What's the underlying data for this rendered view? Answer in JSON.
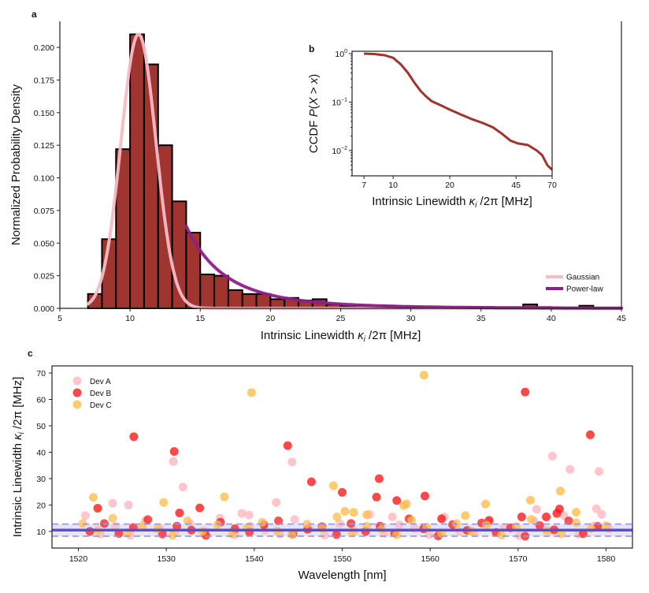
{
  "chart_data": [
    {
      "id": "a",
      "type": "bar",
      "panel_label": "a",
      "xlabel": "Intrinsic Linewidth κ_i /2π [MHz]",
      "xlabel_parts": [
        "Intrinsic Linewidth ",
        "κ",
        "i",
        " /2π [MHz]"
      ],
      "ylabel": "Normalized Probability Density",
      "xlim": [
        5,
        45
      ],
      "ylim": [
        0,
        0.22
      ],
      "xticks": [
        5,
        10,
        15,
        20,
        25,
        30,
        35,
        40,
        45
      ],
      "xtick_labels": [
        "5",
        "10",
        "15",
        "20",
        "25",
        "30",
        "35",
        "40",
        "45"
      ],
      "yticks": [
        0,
        0.025,
        0.05,
        0.075,
        0.1,
        0.125,
        0.15,
        0.175,
        0.2
      ],
      "ytick_labels": [
        "0.000",
        "0.025",
        "0.050",
        "0.075",
        "0.100",
        "0.125",
        "0.150",
        "0.175",
        "0.200"
      ],
      "bin_width": 1,
      "bin_starts": [
        7,
        8,
        9,
        10,
        11,
        12,
        13,
        14,
        15,
        16,
        17,
        18,
        19,
        20,
        21,
        22,
        23,
        24,
        25,
        26,
        27,
        28,
        29,
        30,
        31,
        32,
        33,
        34,
        35,
        36,
        37,
        38,
        39,
        40,
        41,
        42
      ],
      "values": [
        0.011,
        0.053,
        0.122,
        0.21,
        0.187,
        0.125,
        0.082,
        0.058,
        0.026,
        0.025,
        0.014,
        0.011,
        0.011,
        0.007,
        0.008,
        0.006,
        0.007,
        0.003,
        0.002,
        0.002,
        0.001,
        0.002,
        0.001,
        0.001,
        0.0005,
        0.0005,
        0.0005,
        0.001,
        0.001,
        0.0005,
        0.0005,
        0.003,
        0.001,
        0.0005,
        0.0005,
        0.002
      ],
      "bar_color": "#a0342e",
      "fits": [
        {
          "name": "Gaussian",
          "kind": "gaussian",
          "mu": 10.6,
          "sigma": 1.25,
          "peak": 0.21,
          "range": [
            7,
            45
          ],
          "color": "#f7bcc6"
        },
        {
          "name": "Power-law",
          "kind": "powerlaw",
          "x0": 14,
          "y0": 0.063,
          "alpha": 5.1,
          "range": [
            14,
            45
          ],
          "color": "#8e1f8a"
        }
      ],
      "legend": {
        "position": "lower-right",
        "entries": [
          "Gaussian",
          "Power-law"
        ]
      }
    },
    {
      "id": "b",
      "type": "line",
      "panel_label": "b",
      "scale": "log-log",
      "xlabel_parts": [
        "Intrinsic Linewidth ",
        "κ",
        "i",
        " /2π [MHz]"
      ],
      "ylabel_parts": [
        "CCDF ",
        "P",
        "(",
        "X",
        " > ",
        "x",
        ")"
      ],
      "xlim": [
        6.05,
        70
      ],
      "ylim": [
        0.003,
        1.12
      ],
      "xticks": [
        7,
        10,
        20,
        45,
        70
      ],
      "xtick_labels": [
        "7",
        "10",
        "20",
        "45",
        "70"
      ],
      "yticks": [
        1,
        0.1,
        0.01
      ],
      "ytick_labels": [
        {
          "base": "10",
          "exp": "0"
        },
        {
          "base": "10",
          "exp": "−1"
        },
        {
          "base": "10",
          "exp": "−2"
        }
      ],
      "x": [
        7,
        8,
        9,
        10,
        11,
        12,
        13,
        14,
        15,
        16,
        18,
        20,
        23,
        26,
        30,
        34,
        38,
        42,
        46,
        52,
        58,
        62,
        66,
        70
      ],
      "y": [
        1,
        0.98,
        0.93,
        0.82,
        0.6,
        0.4,
        0.25,
        0.17,
        0.13,
        0.105,
        0.085,
        0.07,
        0.055,
        0.045,
        0.037,
        0.03,
        0.022,
        0.016,
        0.014,
        0.013,
        0.01,
        0.008,
        0.005,
        0.004
      ],
      "color": "#a0342e"
    },
    {
      "id": "c",
      "type": "scatter",
      "panel_label": "c",
      "xlabel": "Wavelength [nm]",
      "ylabel_parts": [
        "Intrinsic Linewidth ",
        "κ",
        "i",
        " /2π [MHz]"
      ],
      "xlim": [
        1517,
        1583
      ],
      "ylim": [
        3.7,
        72.7
      ],
      "xticks": [
        1520,
        1530,
        1540,
        1550,
        1560,
        1570,
        1580
      ],
      "xtick_labels": [
        "1520",
        "1530",
        "1540",
        "1550",
        "1560",
        "1570",
        "1580"
      ],
      "yticks": [
        10,
        20,
        30,
        40,
        50,
        60,
        70
      ],
      "ytick_labels": [
        "10",
        "20",
        "30",
        "40",
        "50",
        "60",
        "70"
      ],
      "mean": 10.5,
      "band": [
        8.2,
        12.8
      ],
      "mean_color": "#5a4fd0",
      "legend": {
        "position": "top-left",
        "entries": [
          "Dev A",
          "Dev B",
          "Dev C"
        ]
      },
      "series": [
        {
          "name": "Dev A",
          "color": "#ffb6c1",
          "cluster_x_start": 1520.8,
          "cluster_x_step": 1.7,
          "cluster_y": [
            16,
            9,
            12,
            8.5,
            14,
            11,
            9.5,
            13,
            10,
            15,
            8.8,
            12,
            10.5,
            9,
            14.5,
            11,
            8.6,
            13,
            10,
            16.5,
            9.2,
            12.5,
            11,
            8.8,
            15.5,
            10,
            9.5,
            13.5,
            11.5,
            8.4,
            14,
            10.2,
            16,
            9,
            12,
            11
          ],
          "outliers": [
            [
              1530.8,
              36.5
            ],
            [
              1531.9,
              26.8
            ],
            [
              1544.3,
              36.3
            ],
            [
              1542.5,
              21
            ],
            [
              1523.9,
              20.7
            ],
            [
              1525.7,
              20
            ],
            [
              1538.6,
              16.8
            ],
            [
              1539.4,
              16.2
            ],
            [
              1573.9,
              38.5
            ],
            [
              1575.9,
              33.5
            ],
            [
              1579.2,
              32.7
            ],
            [
              1572.1,
              18.4
            ],
            [
              1578.9,
              18.6
            ],
            [
              1579.5,
              16.5
            ],
            [
              1555.7,
              15.5
            ]
          ]
        },
        {
          "name": "Dev B",
          "color": "#ff1a1a",
          "cluster_x_start": 1521.3,
          "cluster_x_step": 1.65,
          "cluster_y": [
            10,
            13,
            9.2,
            11.5,
            14.5,
            9,
            12,
            10.5,
            8.5,
            13.5,
            11,
            9.8,
            12.5,
            14,
            9,
            10.8,
            11.8,
            8.8,
            13,
            10,
            12,
            9.4,
            14.8,
            11,
            8.3,
            12.6,
            10.4,
            13.2,
            9.6,
            11.4,
            8.2,
            12.2,
            10.6,
            14,
            9.1,
            11.9
          ],
          "outliers": [
            [
              1526.3,
              45.9
            ],
            [
              1530.9,
              40.3
            ],
            [
              1543.8,
              42.5
            ],
            [
              1546.5,
              28.8
            ],
            [
              1522.2,
              18.8
            ],
            [
              1533.8,
              18.9
            ],
            [
              1531.5,
              17
            ],
            [
              1554.2,
              30
            ],
            [
              1550,
              24.8
            ],
            [
              1559.4,
              23.4
            ],
            [
              1553.9,
              23
            ],
            [
              1556.2,
              21.7
            ],
            [
              1570.8,
              62.8
            ],
            [
              1578.2,
              46.6
            ],
            [
              1574.7,
              18.5
            ],
            [
              1574.4,
              16.8
            ],
            [
              1573.2,
              15.5
            ],
            [
              1570.4,
              15.5
            ],
            [
              1561.3,
              14.8
            ],
            [
              1566.7,
              14.2
            ]
          ]
        },
        {
          "name": "Dev C",
          "color": "#ffbe4d",
          "cluster_x_start": 1520.5,
          "cluster_x_step": 1.7,
          "cluster_y": [
            13,
            10.5,
            15,
            9.5,
            12,
            11,
            8.5,
            14,
            10,
            12.5,
            9,
            11.5,
            13.5,
            10.2,
            8.8,
            12.8,
            11.2,
            15.5,
            9.8,
            12,
            10.8,
            8.7,
            14.2,
            11.6,
            9.3,
            13,
            10.1,
            12.4,
            8.6,
            11.8,
            14.6,
            10.3,
            9.1,
            13.3,
            11.1,
            12.2
          ],
          "outliers": [
            [
              1521.7,
              22.9
            ],
            [
              1539.7,
              62.6
            ],
            [
              1536.6,
              23.1
            ],
            [
              1529.7,
              21
            ],
            [
              1549,
              27.3
            ],
            [
              1559.3,
              69.2
            ],
            [
              1557.3,
              20.4
            ],
            [
              1557,
              19.8
            ],
            [
              1571.4,
              21.8
            ],
            [
              1574.8,
              25.3
            ],
            [
              1566.3,
              20.4
            ],
            [
              1576.6,
              17.3
            ],
            [
              1550.3,
              17.6
            ],
            [
              1551.3,
              17.2
            ],
            [
              1564,
              16
            ],
            [
              1552.8,
              16.3
            ]
          ]
        }
      ]
    }
  ]
}
